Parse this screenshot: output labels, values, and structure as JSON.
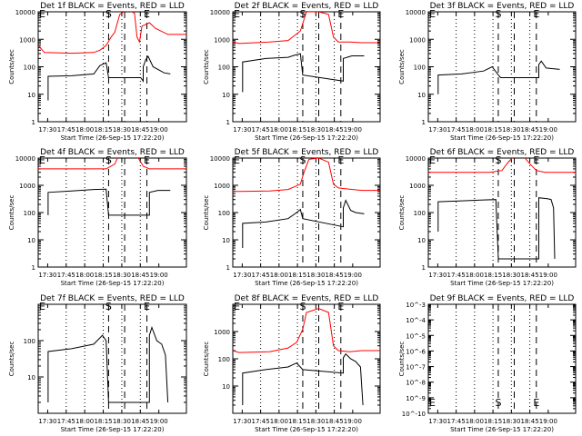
{
  "chart_data": [
    {
      "type": "line",
      "title": "Det 1f BLACK = Events, RED = LLD",
      "xlabel": "Start Time (26-Sep-15 17:22:20)",
      "ylabel": "Counts/sec",
      "x_ticks": [
        "17:30",
        "17:45",
        "18:00",
        "18:15",
        "18:30",
        "18:45",
        "19:00"
      ],
      "y_ticks": [
        "1",
        "10",
        "100",
        "1000",
        "10000"
      ],
      "markers": [
        "E",
        "S",
        "E"
      ],
      "series": [
        {
          "color": "#000000",
          "points": [
            [
              8,
              6
            ],
            [
              8,
              45
            ],
            [
              27,
              47
            ],
            [
              45,
              55
            ],
            [
              50,
              110
            ],
            [
              55,
              140
            ],
            [
              57,
              40
            ],
            [
              83,
              40
            ],
            [
              85,
              30
            ],
            [
              85,
              100
            ],
            [
              87,
              180
            ],
            [
              89,
              240
            ],
            [
              93,
              100
            ],
            [
              102,
              60
            ],
            [
              107,
              55
            ]
          ]
        },
        {
          "color": "#ff0000",
          "points": [
            [
              0,
              600
            ],
            [
              5,
              330
            ],
            [
              27,
              310
            ],
            [
              45,
              330
            ],
            [
              50,
              400
            ],
            [
              55,
              600
            ],
            [
              59,
              1200
            ],
            [
              62,
              1800
            ],
            [
              66,
              8000
            ],
            [
              72,
              12000
            ],
            [
              78,
              9000
            ],
            [
              80,
              1200
            ],
            [
              82,
              800
            ],
            [
              84,
              3000
            ],
            [
              90,
              4000
            ],
            [
              95,
              2500
            ],
            [
              105,
              1500
            ],
            [
              120,
              1500
            ]
          ]
        }
      ]
    },
    {
      "type": "line",
      "title": "Det 2f BLACK = Events, RED = LLD",
      "xlabel": "Start Time (26-Sep-15 17:22:20)",
      "ylabel": "Counts/sec",
      "x_ticks": [
        "17:30",
        "17:45",
        "18:00",
        "18:15",
        "18:30",
        "18:45",
        "19:00"
      ],
      "y_ticks": [
        "1",
        "10",
        "100",
        "1000",
        "10000"
      ],
      "markers": [
        "E",
        "S",
        "E"
      ],
      "series": [
        {
          "color": "#000000",
          "points": [
            [
              8,
              12
            ],
            [
              8,
              150
            ],
            [
              27,
              200
            ],
            [
              45,
              220
            ],
            [
              50,
              260
            ],
            [
              55,
              300
            ],
            [
              57,
              50
            ],
            [
              90,
              30
            ],
            [
              90,
              200
            ],
            [
              97,
              250
            ],
            [
              107,
              250
            ]
          ]
        },
        {
          "color": "#ff0000",
          "points": [
            [
              0,
              800
            ],
            [
              5,
              700
            ],
            [
              30,
              800
            ],
            [
              45,
              900
            ],
            [
              55,
              2000
            ],
            [
              60,
              10000
            ],
            [
              70,
              10000
            ],
            [
              78,
              8000
            ],
            [
              82,
              1200
            ],
            [
              86,
              800
            ],
            [
              95,
              800
            ],
            [
              105,
              750
            ],
            [
              120,
              750
            ]
          ]
        }
      ]
    },
    {
      "type": "line",
      "title": "Det 3f BLACK = Events, RED = LLD",
      "xlabel": "Start Time (26-Sep-15 17:22:20)",
      "ylabel": "Counts/sec",
      "x_ticks": [
        "17:30",
        "17:45",
        "18:00",
        "18:15",
        "18:30",
        "18:45",
        "19:00"
      ],
      "y_ticks": [
        "1",
        "10",
        "100",
        "1000",
        "10000"
      ],
      "markers": [
        "E",
        "S",
        "E"
      ],
      "series": [
        {
          "color": "#000000",
          "points": [
            [
              8,
              10
            ],
            [
              8,
              50
            ],
            [
              27,
              55
            ],
            [
              45,
              70
            ],
            [
              52,
              100
            ],
            [
              57,
              50
            ],
            [
              59,
              40
            ],
            [
              90,
              40
            ],
            [
              90,
              120
            ],
            [
              92,
              160
            ],
            [
              96,
              90
            ],
            [
              107,
              80
            ]
          ]
        }
      ]
    },
    {
      "type": "line",
      "title": "Det 4f BLACK = Events, RED = LLD",
      "xlabel": "Start Time (26-Sep-15 17:22:20)",
      "ylabel": "Counts/sec",
      "x_ticks": [
        "17:30",
        "17:45",
        "18:00",
        "18:15",
        "18:30",
        "18:45",
        "19:00"
      ],
      "y_ticks": [
        "1",
        "10",
        "100",
        "1000",
        "10000"
      ],
      "markers": [
        "E",
        "S",
        "E"
      ],
      "series": [
        {
          "color": "#000000",
          "points": [
            [
              8,
              80
            ],
            [
              8,
              550
            ],
            [
              27,
              620
            ],
            [
              45,
              700
            ],
            [
              55,
              720
            ],
            [
              57,
              80
            ],
            [
              90,
              80
            ],
            [
              90,
              550
            ],
            [
              97,
              650
            ],
            [
              107,
              650
            ]
          ]
        },
        {
          "color": "#ff0000",
          "points": [
            [
              0,
              4000
            ],
            [
              55,
              4000
            ],
            [
              62,
              6000
            ],
            [
              65,
              12000
            ],
            [
              80,
              12000
            ],
            [
              85,
              5000
            ],
            [
              90,
              4000
            ],
            [
              120,
              4000
            ]
          ]
        }
      ]
    },
    {
      "type": "line",
      "title": "Det 5f BLACK = Events, RED = LLD",
      "xlabel": "Start Time (26-Sep-15 17:22:20)",
      "ylabel": "Counts/sec",
      "x_ticks": [
        "17:30",
        "17:45",
        "18:00",
        "18:15",
        "18:30",
        "18:45",
        "19:00"
      ],
      "y_ticks": [
        "1",
        "10",
        "100",
        "1000",
        "10000"
      ],
      "markers": [
        "E",
        "S",
        "E"
      ],
      "series": [
        {
          "color": "#000000",
          "points": [
            [
              8,
              5
            ],
            [
              8,
              40
            ],
            [
              27,
              45
            ],
            [
              45,
              60
            ],
            [
              52,
              100
            ],
            [
              55,
              130
            ],
            [
              57,
              60
            ],
            [
              90,
              30
            ],
            [
              90,
              150
            ],
            [
              92,
              280
            ],
            [
              96,
              120
            ],
            [
              100,
              100
            ],
            [
              107,
              90
            ]
          ]
        },
        {
          "color": "#ff0000",
          "points": [
            [
              0,
              600
            ],
            [
              5,
              600
            ],
            [
              30,
              620
            ],
            [
              45,
              700
            ],
            [
              55,
              1100
            ],
            [
              58,
              3000
            ],
            [
              62,
              9000
            ],
            [
              70,
              10000
            ],
            [
              78,
              7000
            ],
            [
              82,
              1100
            ],
            [
              86,
              800
            ],
            [
              95,
              720
            ],
            [
              105,
              650
            ],
            [
              120,
              650
            ]
          ]
        }
      ]
    },
    {
      "type": "line",
      "title": "Det 6f BLACK = Events, RED = LLD",
      "xlabel": "Start Time (26-Sep-15 17:22:20)",
      "ylabel": "Counts/sec",
      "x_ticks": [
        "17:30",
        "17:45",
        "18:00",
        "18:15",
        "18:30",
        "18:45",
        "19:00"
      ],
      "y_ticks": [
        "1",
        "10",
        "100",
        "1000",
        "10000"
      ],
      "markers": [
        "E",
        "S",
        "E"
      ],
      "series": [
        {
          "color": "#000000",
          "points": [
            [
              8,
              20
            ],
            [
              8,
              250
            ],
            [
              27,
              270
            ],
            [
              45,
              290
            ],
            [
              55,
              300
            ],
            [
              57,
              2
            ],
            [
              90,
              2
            ],
            [
              90,
              350
            ],
            [
              97,
              320
            ],
            [
              100,
              300
            ],
            [
              102,
              150
            ],
            [
              103,
              2
            ]
          ]
        },
        {
          "color": "#ff0000",
          "points": [
            [
              0,
              3000
            ],
            [
              50,
              3000
            ],
            [
              60,
              3500
            ],
            [
              65,
              7000
            ],
            [
              70,
              12000
            ],
            [
              78,
              11000
            ],
            [
              83,
              6000
            ],
            [
              88,
              3500
            ],
            [
              95,
              3000
            ],
            [
              120,
              3000
            ]
          ]
        }
      ]
    },
    {
      "type": "line",
      "title": "Det 7f BLACK = Events, RED = LLD",
      "xlabel": "Start Time (26-Sep-15 17:22:20)",
      "ylabel": "Counts/sec",
      "x_ticks": [
        "17:30",
        "17:45",
        "18:00",
        "18:15",
        "18:30",
        "18:45",
        "19:00"
      ],
      "y_ticks": [
        "10",
        "100"
      ],
      "markers": [
        "E",
        "S",
        "E"
      ],
      "series": [
        {
          "color": "#000000",
          "points": [
            [
              8,
              2
            ],
            [
              8,
              50
            ],
            [
              27,
              60
            ],
            [
              45,
              80
            ],
            [
              52,
              140
            ],
            [
              55,
              100
            ],
            [
              57,
              2
            ],
            [
              90,
              2
            ],
            [
              90,
              140
            ],
            [
              92,
              230
            ],
            [
              96,
              100
            ],
            [
              100,
              80
            ],
            [
              103,
              40
            ],
            [
              105,
              2
            ]
          ]
        }
      ]
    },
    {
      "type": "line",
      "title": "Det 8f BLACK = Events, RED = LLD",
      "xlabel": "Start Time (26-Sep-15 17:22:20)",
      "ylabel": "Counts/sec",
      "x_ticks": [
        "17:30",
        "17:45",
        "18:00",
        "18:15",
        "18:30",
        "18:45",
        "19:00"
      ],
      "y_ticks": [
        "10",
        "100",
        "1000"
      ],
      "markers": [
        "E",
        "S",
        "E"
      ],
      "series": [
        {
          "color": "#000000",
          "points": [
            [
              8,
              2
            ],
            [
              8,
              30
            ],
            [
              27,
              40
            ],
            [
              45,
              50
            ],
            [
              52,
              70
            ],
            [
              57,
              40
            ],
            [
              90,
              30
            ],
            [
              90,
              110
            ],
            [
              92,
              150
            ],
            [
              96,
              100
            ],
            [
              100,
              80
            ],
            [
              104,
              50
            ],
            [
              106,
              2
            ]
          ]
        },
        {
          "color": "#ff0000",
          "points": [
            [
              0,
              200
            ],
            [
              5,
              170
            ],
            [
              30,
              180
            ],
            [
              45,
              250
            ],
            [
              52,
              400
            ],
            [
              57,
              1200
            ],
            [
              60,
              5000
            ],
            [
              70,
              7000
            ],
            [
              78,
              5000
            ],
            [
              82,
              300
            ],
            [
              86,
              200
            ],
            [
              95,
              180
            ],
            [
              105,
              200
            ],
            [
              120,
              200
            ]
          ]
        }
      ]
    },
    {
      "type": "line",
      "title": "Det 9f BLACK = Events, RED = LLD",
      "xlabel": "Start Time (26-Sep-15 17:22:20)",
      "ylabel": "Counts/sec",
      "x_ticks": [
        "17:30",
        "17:45",
        "18:00",
        "18:15",
        "18:30",
        "18:45",
        "19:00"
      ],
      "y_ticks": [
        "10^-10",
        "10^-9",
        "10^-8",
        "10^-7",
        "10^-6",
        "10^-5",
        "10^-4",
        "10^-3"
      ],
      "markers": [
        "E",
        "S",
        "E"
      ],
      "series": []
    }
  ]
}
